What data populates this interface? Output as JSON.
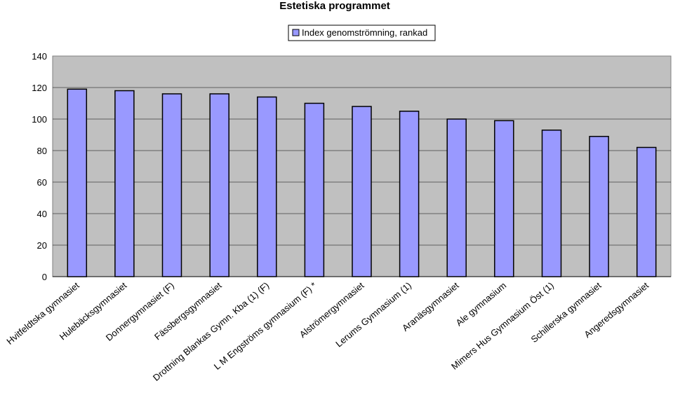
{
  "chart_data": {
    "type": "bar",
    "title": "Estetiska programmet",
    "xlabel": "",
    "ylabel": "",
    "ylim": [
      0,
      140
    ],
    "yticks": [
      0,
      20,
      40,
      60,
      80,
      100,
      120,
      140
    ],
    "grid": true,
    "legend_position": "top-right",
    "categories": [
      "Hvitfeldtska gymnasiet",
      "Hulebäcksgymnasiet",
      "Donnergymnasiet (F)",
      "Fässbergsgymnasiet",
      "Drottning Blankas Gymn. Kba (1) (F)",
      "L M Engströms gymnasium (F) *",
      "Alströmergymnasiet",
      "Lerums Gymnasium (1)",
      "Aranäsgymnasiet",
      "Ale gymnasium",
      "Mimers Hus Gymnasium Öst (1)",
      "Schillerska gymnasiet",
      "Angeredsgymnasiet"
    ],
    "series": [
      {
        "name": "Index genomströmning, rankad",
        "values": [
          119,
          118,
          116,
          116,
          114,
          110,
          108,
          105,
          100,
          99,
          93,
          89,
          82
        ]
      }
    ],
    "colors": {
      "bar_fill": "#9999ff",
      "bar_stroke": "#000000",
      "plot_bg": "#c0c0c0",
      "gridline": "#000000"
    }
  }
}
